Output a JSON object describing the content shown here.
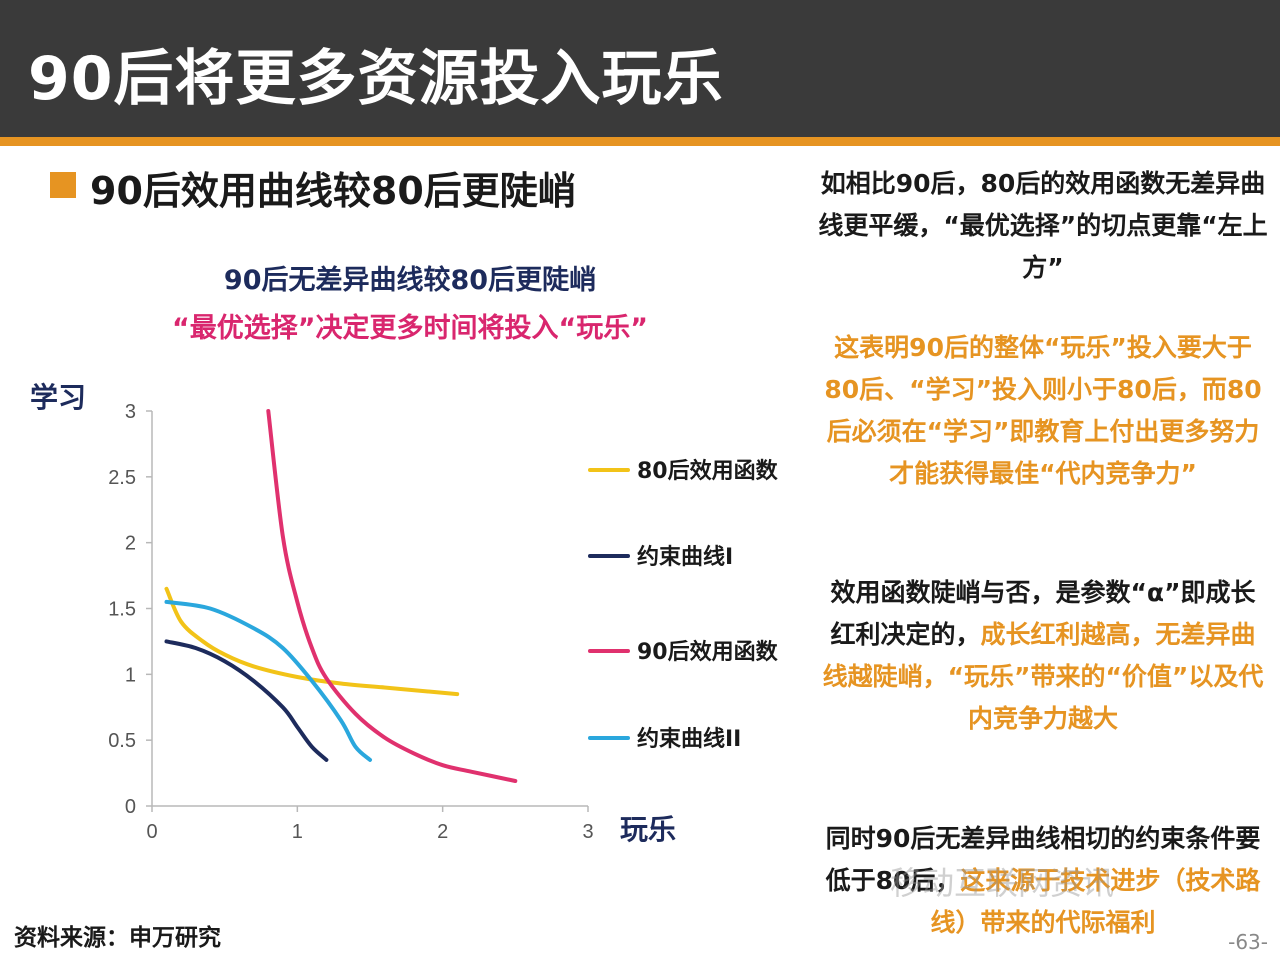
{
  "header": {
    "title": "90后将更多资源投入玩乐"
  },
  "subtitle": "90后效用曲线较80后更陡峭",
  "chart_data": {
    "type": "line",
    "title": "90后无差异曲线较80后更陡峭",
    "subtitle": "“最优选择”决定更多时间将投入“玩乐”",
    "ylabel": "学习",
    "xlabel": "玩乐",
    "xlim": [
      0,
      3
    ],
    "ylim": [
      0,
      3
    ],
    "xticks": [
      "0",
      "1",
      "2",
      "3"
    ],
    "yticks": [
      "0",
      "0.5",
      "1",
      "1.5",
      "2",
      "2.5",
      "3"
    ],
    "legend_position": "right",
    "series": [
      {
        "name": "80后效用函数",
        "color": "#f2c318",
        "x": [
          0.1,
          0.2,
          0.35,
          0.5,
          0.7,
          1.0,
          1.3,
          1.6,
          1.9,
          2.1
        ],
        "y": [
          1.65,
          1.4,
          1.25,
          1.15,
          1.06,
          0.98,
          0.93,
          0.9,
          0.87,
          0.85
        ]
      },
      {
        "name": "约束曲线I",
        "color": "#1d2b5c",
        "x": [
          0.1,
          0.3,
          0.5,
          0.7,
          0.9,
          1.0,
          1.1,
          1.2
        ],
        "y": [
          1.25,
          1.2,
          1.1,
          0.95,
          0.75,
          0.6,
          0.45,
          0.35
        ]
      },
      {
        "name": "90后效用函数",
        "color": "#e0316e",
        "x": [
          0.8,
          0.9,
          1.0,
          1.1,
          1.2,
          1.4,
          1.6,
          1.8,
          2.0,
          2.2,
          2.5
        ],
        "y": [
          3.0,
          2.05,
          1.55,
          1.2,
          0.97,
          0.7,
          0.52,
          0.4,
          0.31,
          0.26,
          0.19
        ]
      },
      {
        "name": "约束曲线II",
        "color": "#2aa7dd",
        "x": [
          0.1,
          0.4,
          0.7,
          0.9,
          1.1,
          1.3,
          1.4,
          1.5
        ],
        "y": [
          1.55,
          1.5,
          1.35,
          1.2,
          0.95,
          0.65,
          0.45,
          0.35
        ]
      }
    ]
  },
  "right": {
    "para1": "如相比90后，80后的效用函数无差异曲线更平缓，“最优选择”的切点更靠“左上方”",
    "para2": "这表明90后的整体“玩乐”投入要大于80后、“学习”投入则小于80后，而80后必须在“学习”即教育上付出更多努力才能获得最佳“代内竞争力”",
    "para3_black": "效用函数陡峭与否，是参数“α”即成长红利决定的，",
    "para3_orange": "成长红利越高，无差异曲线越陡峭，“玩乐”带来的“价值”以及代内竞争力越大",
    "para4_black": "同时90后无差异曲线相切的约束条件要低于80后，",
    "para4_orange": "这来源于技术进步（技术路线）带来的代际福利"
  },
  "footer": {
    "source": "资料来源：申万研究",
    "page": "-63-",
    "watermark": "移动互联网资讯"
  },
  "colors": {
    "header_bg": "#3a3a3a",
    "accent": "#e69422"
  }
}
